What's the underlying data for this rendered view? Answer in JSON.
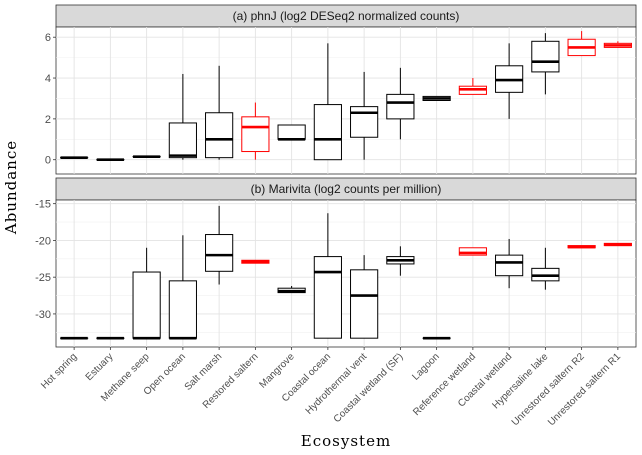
{
  "chart_data": {
    "type": "boxplot",
    "xlabel": "Ecosystem",
    "ylabel": "Abundance",
    "categories": [
      "Hot spring",
      "Estuary",
      "Methane seep",
      "Open ocean",
      "Salt marsh",
      "Restored saltern",
      "Mangrove",
      "Coastal ocean",
      "Hydrothermal vent",
      "Coastal wetland (SF)",
      "Lagoon",
      "Reference wetland",
      "Coastal wetland",
      "Hypersaline lake",
      "Unrestored saltern R2",
      "Unrestored saltern R1"
    ],
    "highlight_color": "#ff0000",
    "default_color": "#000000",
    "panels": [
      {
        "title": "(a) phnJ (log2 DESeq2 normalized counts)",
        "ylim": [
          -0.7,
          6.5
        ],
        "yticks": [
          0,
          2,
          4,
          6
        ],
        "boxes": [
          {
            "category": "Hot spring",
            "min": 0.1,
            "q1": 0.1,
            "median": 0.1,
            "q3": 0.1,
            "max": 0.1,
            "highlight": false
          },
          {
            "category": "Estuary",
            "min": 0.0,
            "q1": 0.0,
            "median": 0.0,
            "q3": 0.0,
            "max": 0.0,
            "highlight": false
          },
          {
            "category": "Methane seep",
            "min": 0.15,
            "q1": 0.15,
            "median": 0.15,
            "q3": 0.15,
            "max": 0.15,
            "highlight": false
          },
          {
            "category": "Open ocean",
            "min": 0.0,
            "q1": 0.1,
            "median": 0.2,
            "q3": 1.8,
            "max": 4.2,
            "highlight": false
          },
          {
            "category": "Salt marsh",
            "min": 0.0,
            "q1": 0.1,
            "median": 1.0,
            "q3": 2.3,
            "max": 4.6,
            "highlight": false
          },
          {
            "category": "Restored saltern",
            "min": 0.0,
            "q1": 0.4,
            "median": 1.6,
            "q3": 2.1,
            "max": 2.8,
            "highlight": true
          },
          {
            "category": "Mangrove",
            "min": 1.0,
            "q1": 1.0,
            "median": 1.0,
            "q3": 1.7,
            "max": 1.7,
            "highlight": false
          },
          {
            "category": "Coastal ocean",
            "min": 0.0,
            "q1": 0.0,
            "median": 1.0,
            "q3": 2.7,
            "max": 5.7,
            "highlight": false
          },
          {
            "category": "Hydrothermal vent",
            "min": 0.0,
            "q1": 1.1,
            "median": 2.3,
            "q3": 2.6,
            "max": 4.3,
            "highlight": false
          },
          {
            "category": "Coastal wetland (SF)",
            "min": 1.0,
            "q1": 2.0,
            "median": 2.8,
            "q3": 3.2,
            "max": 4.5,
            "highlight": false
          },
          {
            "category": "Lagoon",
            "min": 2.9,
            "q1": 2.9,
            "median": 3.0,
            "q3": 3.1,
            "max": 3.1,
            "highlight": false
          },
          {
            "category": "Reference wetland",
            "min": 3.2,
            "q1": 3.2,
            "median": 3.45,
            "q3": 3.6,
            "max": 4.0,
            "highlight": true
          },
          {
            "category": "Coastal wetland",
            "min": 2.0,
            "q1": 3.3,
            "median": 3.9,
            "q3": 4.6,
            "max": 5.7,
            "highlight": false
          },
          {
            "category": "Hypersaline lake",
            "min": 3.2,
            "q1": 4.3,
            "median": 4.8,
            "q3": 5.8,
            "max": 6.2,
            "highlight": false
          },
          {
            "category": "Unrestored saltern R2",
            "min": 5.1,
            "q1": 5.1,
            "median": 5.5,
            "q3": 5.9,
            "max": 6.3,
            "highlight": true
          },
          {
            "category": "Unrestored saltern R1",
            "min": 5.5,
            "q1": 5.5,
            "median": 5.6,
            "q3": 5.7,
            "max": 5.8,
            "highlight": true
          }
        ]
      },
      {
        "title": "(b) Marivita (log2 counts per million)",
        "ylim": [
          -34.5,
          -14.5
        ],
        "yticks": [
          -30,
          -25,
          -20,
          -15
        ],
        "boxes": [
          {
            "category": "Hot spring",
            "min": -33.3,
            "q1": -33.3,
            "median": -33.3,
            "q3": -33.3,
            "max": -33.3,
            "highlight": false
          },
          {
            "category": "Estuary",
            "min": -33.3,
            "q1": -33.3,
            "median": -33.3,
            "q3": -33.3,
            "max": -33.3,
            "highlight": false
          },
          {
            "category": "Methane seep",
            "min": -33.3,
            "q1": -33.3,
            "median": -33.3,
            "q3": -24.3,
            "max": -21.0,
            "highlight": false
          },
          {
            "category": "Open ocean",
            "min": -33.3,
            "q1": -33.3,
            "median": -33.3,
            "q3": -25.5,
            "max": -19.3,
            "highlight": false
          },
          {
            "category": "Salt marsh",
            "min": -26.0,
            "q1": -24.2,
            "median": -22.0,
            "q3": -19.2,
            "max": -15.3,
            "highlight": false
          },
          {
            "category": "Restored saltern",
            "min": -23.1,
            "q1": -23.1,
            "median": -22.9,
            "q3": -22.7,
            "max": -22.7,
            "highlight": true
          },
          {
            "category": "Mangrove",
            "min": -27.1,
            "q1": -27.1,
            "median": -26.9,
            "q3": -26.5,
            "max": -26.2,
            "highlight": false
          },
          {
            "category": "Coastal ocean",
            "min": -33.3,
            "q1": -33.3,
            "median": -24.3,
            "q3": -22.2,
            "max": -16.3,
            "highlight": false
          },
          {
            "category": "Hydrothermal vent",
            "min": -33.3,
            "q1": -33.3,
            "median": -27.5,
            "q3": -24.0,
            "max": -22.0,
            "highlight": false
          },
          {
            "category": "Coastal wetland (SF)",
            "min": -24.8,
            "q1": -23.2,
            "median": -22.7,
            "q3": -22.2,
            "max": -20.8,
            "highlight": false
          },
          {
            "category": "Lagoon",
            "min": -33.3,
            "q1": -33.3,
            "median": -33.3,
            "q3": -33.3,
            "max": -33.3,
            "highlight": false
          },
          {
            "category": "Reference wetland",
            "min": -22.0,
            "q1": -22.0,
            "median": -21.7,
            "q3": -21.0,
            "max": -21.0,
            "highlight": true
          },
          {
            "category": "Coastal wetland",
            "min": -26.5,
            "q1": -24.8,
            "median": -23.0,
            "q3": -22.0,
            "max": -19.8,
            "highlight": false
          },
          {
            "category": "Hypersaline lake",
            "min": -26.7,
            "q1": -25.5,
            "median": -24.8,
            "q3": -23.8,
            "max": -21.0,
            "highlight": false
          },
          {
            "category": "Unrestored saltern R2",
            "min": -21.0,
            "q1": -21.0,
            "median": -20.9,
            "q3": -20.7,
            "max": -20.7,
            "highlight": true
          },
          {
            "category": "Unrestored saltern R1",
            "min": -20.7,
            "q1": -20.7,
            "median": -20.6,
            "q3": -20.4,
            "max": -20.4,
            "highlight": true
          }
        ]
      }
    ]
  }
}
